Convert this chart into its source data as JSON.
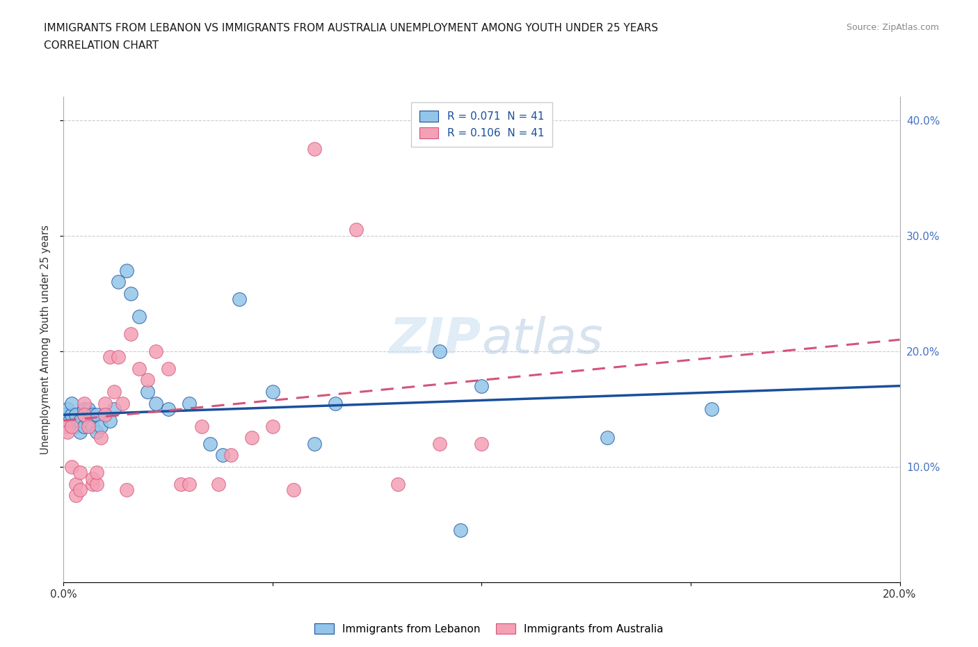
{
  "title_line1": "IMMIGRANTS FROM LEBANON VS IMMIGRANTS FROM AUSTRALIA UNEMPLOYMENT AMONG YOUTH UNDER 25 YEARS",
  "title_line2": "CORRELATION CHART",
  "source": "Source: ZipAtlas.com",
  "ylabel": "Unemployment Among Youth under 25 years",
  "xlim": [
    0.0,
    0.2
  ],
  "ylim": [
    0.0,
    0.42
  ],
  "xticks": [
    0.0,
    0.05,
    0.1,
    0.15,
    0.2
  ],
  "yticks": [
    0.1,
    0.2,
    0.3,
    0.4
  ],
  "ytick_labels_right": [
    "10.0%",
    "20.0%",
    "30.0%",
    "40.0%"
  ],
  "xtick_labels": [
    "0.0%",
    "",
    "",
    "",
    "20.0%"
  ],
  "watermark": "ZIPatlas",
  "legend_r1": "R = 0.071  N = 41",
  "legend_r2": "R = 0.106  N = 41",
  "legend_label1": "Immigrants from Lebanon",
  "legend_label2": "Immigrants from Australia",
  "color_lebanon": "#92C5E8",
  "color_australia": "#F4A0B5",
  "line_color_lebanon": "#1A4F9C",
  "line_color_australia": "#D4547A",
  "background_color": "#FFFFFF",
  "lebanon_x": [
    0.0005,
    0.001,
    0.0015,
    0.002,
    0.002,
    0.003,
    0.003,
    0.004,
    0.004,
    0.005,
    0.005,
    0.005,
    0.006,
    0.006,
    0.007,
    0.007,
    0.008,
    0.008,
    0.009,
    0.01,
    0.011,
    0.012,
    0.013,
    0.015,
    0.016,
    0.018,
    0.02,
    0.022,
    0.025,
    0.03,
    0.035,
    0.038,
    0.042,
    0.05,
    0.06,
    0.065,
    0.09,
    0.095,
    0.1,
    0.13,
    0.155
  ],
  "lebanon_y": [
    0.145,
    0.15,
    0.14,
    0.145,
    0.155,
    0.135,
    0.145,
    0.13,
    0.14,
    0.135,
    0.145,
    0.15,
    0.14,
    0.15,
    0.135,
    0.145,
    0.13,
    0.145,
    0.135,
    0.145,
    0.14,
    0.15,
    0.26,
    0.27,
    0.25,
    0.23,
    0.165,
    0.155,
    0.15,
    0.155,
    0.12,
    0.11,
    0.245,
    0.165,
    0.12,
    0.155,
    0.2,
    0.045,
    0.17,
    0.125,
    0.15
  ],
  "australia_x": [
    0.0005,
    0.001,
    0.002,
    0.002,
    0.003,
    0.003,
    0.004,
    0.004,
    0.005,
    0.005,
    0.006,
    0.007,
    0.007,
    0.008,
    0.008,
    0.009,
    0.01,
    0.01,
    0.011,
    0.012,
    0.013,
    0.014,
    0.015,
    0.016,
    0.018,
    0.02,
    0.022,
    0.025,
    0.028,
    0.03,
    0.033,
    0.037,
    0.04,
    0.045,
    0.05,
    0.055,
    0.06,
    0.07,
    0.08,
    0.09,
    0.1
  ],
  "australia_y": [
    0.135,
    0.13,
    0.135,
    0.1,
    0.085,
    0.075,
    0.095,
    0.08,
    0.155,
    0.145,
    0.135,
    0.085,
    0.09,
    0.085,
    0.095,
    0.125,
    0.155,
    0.145,
    0.195,
    0.165,
    0.195,
    0.155,
    0.08,
    0.215,
    0.185,
    0.175,
    0.2,
    0.185,
    0.085,
    0.085,
    0.135,
    0.085,
    0.11,
    0.125,
    0.135,
    0.08,
    0.375,
    0.305,
    0.085,
    0.12,
    0.12
  ]
}
